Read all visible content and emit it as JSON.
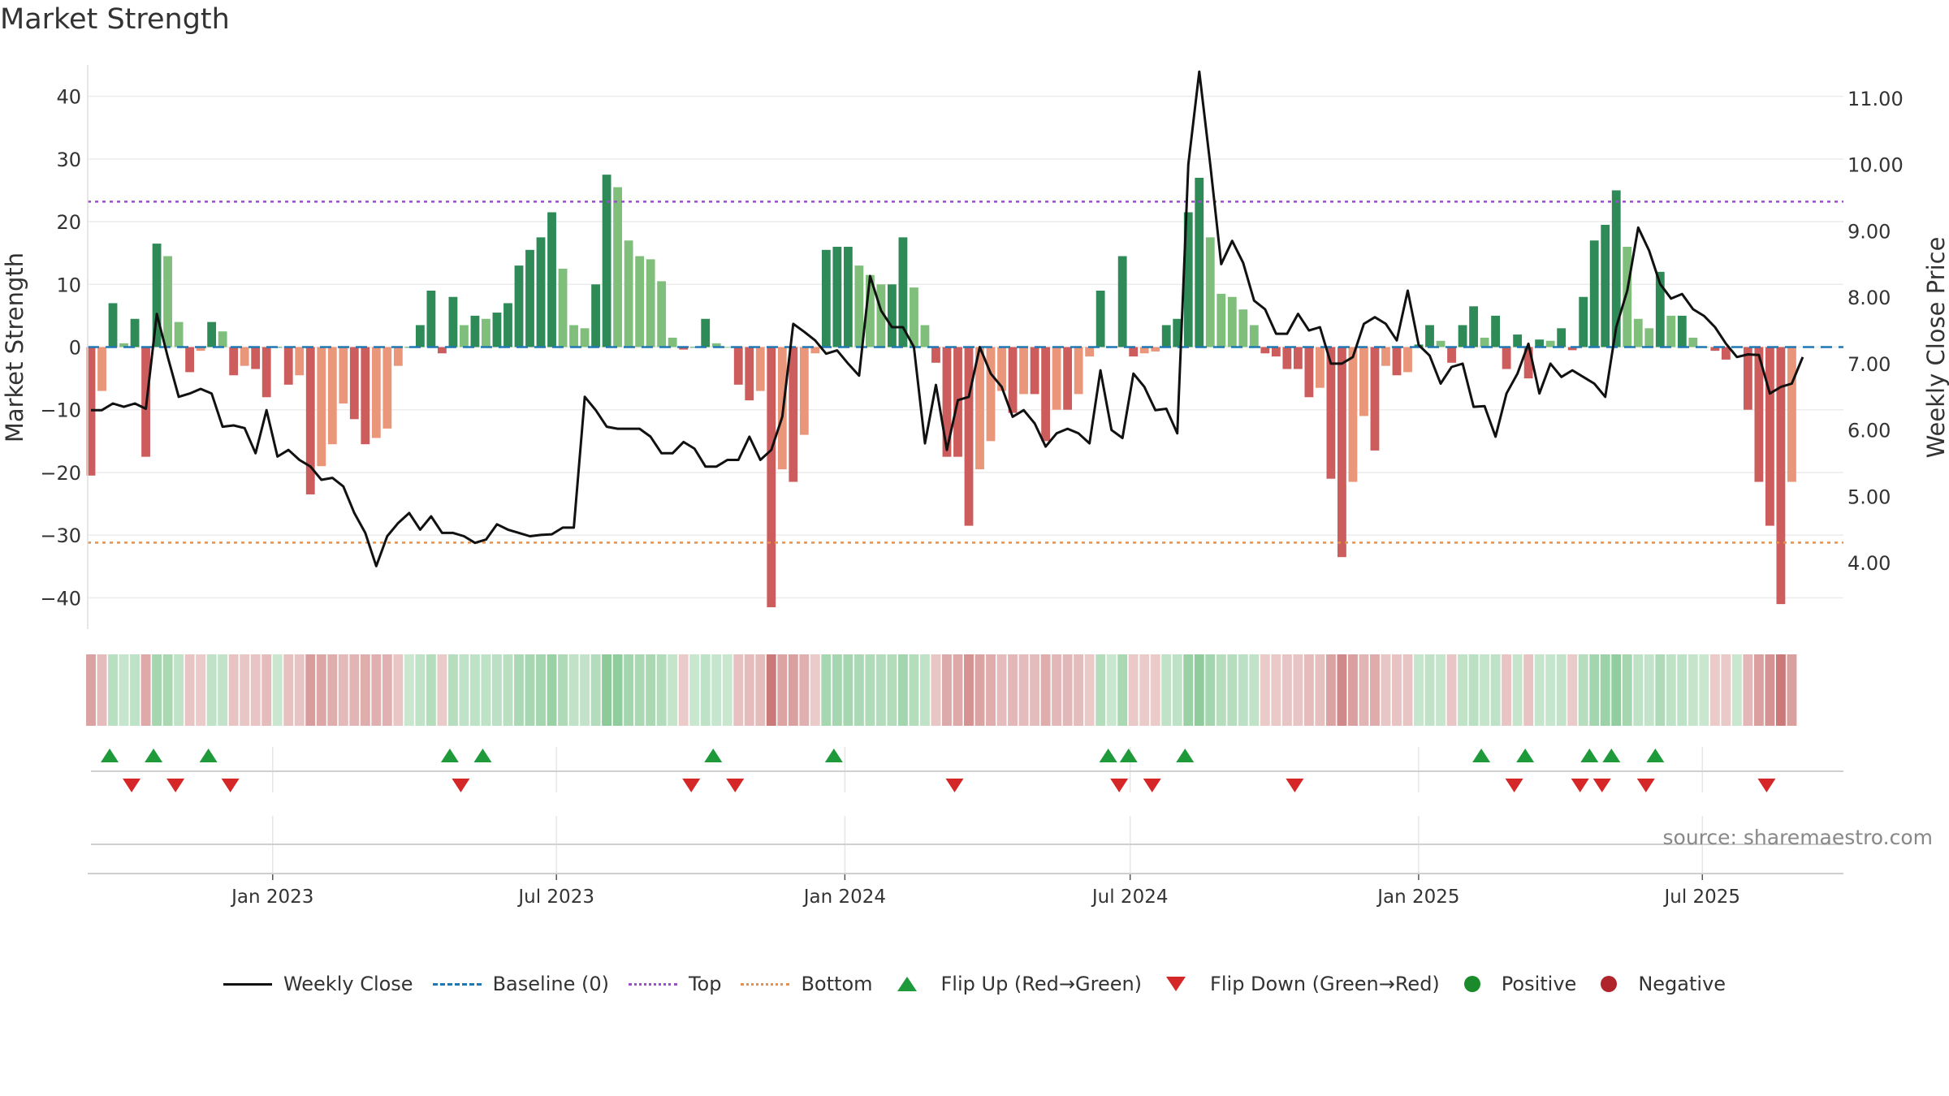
{
  "title": "Market Strength",
  "source_text": "source: sharemaestro.com",
  "legend": {
    "close": "Weekly Close",
    "baseline": "Baseline (0)",
    "top": "Top",
    "bottom": "Bottom",
    "flip_up": "Flip Up (Red→Green)",
    "flip_down": "Flip Down (Green→Red)",
    "positive": "Positive",
    "negative": "Negative"
  },
  "colors": {
    "pos_strong": "#2e8b57",
    "pos_light": "#7fbf7b",
    "neg_strong": "#cd5c5c",
    "neg_light": "#e9967a",
    "close_line": "#111111",
    "baseline": "#1f77b4",
    "top": "#9b4ccf",
    "bottom": "#e8904a",
    "flip_up": "#1e9a3b",
    "flip_down": "#d62728"
  },
  "chart_data": {
    "type": "bar",
    "ylabel": "Market Strength",
    "y2label": "Weekly Close Price",
    "ylim": [
      -45,
      45
    ],
    "y2lim": [
      3.0,
      11.5
    ],
    "yticks": [
      -40,
      -30,
      -20,
      -10,
      0,
      10,
      20,
      30,
      40
    ],
    "y2ticks": [
      "4.00",
      "5.00",
      "6.00",
      "7.00",
      "8.00",
      "9.00",
      "10.00",
      "11.00"
    ],
    "x_start": "2022-09-05",
    "x_end": "2025-09-29",
    "xticks": [
      {
        "date": "2023-01-01",
        "label": "Jan 2023"
      },
      {
        "date": "2023-07-01",
        "label": "Jul 2023"
      },
      {
        "date": "2024-01-01",
        "label": "Jan 2024"
      },
      {
        "date": "2024-07-01",
        "label": "Jul 2024"
      },
      {
        "date": "2025-01-01",
        "label": "Jan 2025"
      },
      {
        "date": "2025-07-01",
        "label": "Jul 2025"
      }
    ],
    "top_level": 23.2,
    "bottom_level": -31.2,
    "baseline": 0,
    "grid": true,
    "legend_position": "bottom",
    "first_week": "2022-09-05",
    "strength": [
      -20.5,
      -7,
      7,
      0.6,
      4.5,
      -17.5,
      16.5,
      14.5,
      4,
      -4,
      -0.6,
      4,
      2.5,
      -4.5,
      -3,
      -3.5,
      -8,
      0,
      -6,
      -4.5,
      -23.5,
      -19,
      -15.5,
      -9,
      -11.5,
      -15.5,
      -14.5,
      -13,
      -3,
      0,
      3.5,
      9,
      -1,
      8,
      3.5,
      5,
      4.5,
      5.5,
      7,
      13,
      15.5,
      17.5,
      21.5,
      12.5,
      3.5,
      3,
      10,
      27.5,
      25.5,
      17,
      14.5,
      14,
      10.5,
      1.5,
      -0.4,
      0,
      4.5,
      0.6,
      0,
      -6,
      -8.5,
      -7,
      -41.5,
      -19.5,
      -21.5,
      -14,
      -1,
      15.5,
      16,
      16,
      13,
      11.5,
      10,
      10,
      17.5,
      9.5,
      3.5,
      -2.5,
      -17.5,
      -17.5,
      -28.5,
      -19.5,
      -15,
      -7,
      -10.5,
      -7.5,
      -7.5,
      -15,
      -10,
      -10,
      -7.5,
      -1.5,
      9,
      0,
      14.5,
      -1.5,
      -1,
      -0.7,
      3.5,
      4.5,
      21.5,
      27,
      17.5,
      8.5,
      8,
      6,
      3.5,
      -1,
      -1.5,
      -3.5,
      -3.5,
      -8,
      -6.5,
      -21,
      -33.5,
      -21.5,
      -11,
      -16.5,
      -3,
      -4.5,
      -4,
      0.4,
      3.5,
      1,
      -2.5,
      3.5,
      6.5,
      1.5,
      5,
      -3.5,
      2,
      -5,
      1.2,
      1,
      3,
      -0.5,
      8,
      17,
      19.5,
      25,
      16,
      4.5,
      3,
      12,
      5,
      5,
      1.5,
      0,
      -0.6,
      -2,
      0,
      -10,
      -21.5,
      -28.5,
      -41,
      -21.5
    ],
    "close": [
      6.3,
      6.3,
      6.4,
      6.35,
      6.4,
      6.32,
      7.75,
      7.1,
      6.5,
      6.55,
      6.62,
      6.55,
      6.05,
      6.07,
      6.03,
      5.65,
      6.3,
      5.6,
      5.7,
      5.55,
      5.45,
      5.25,
      5.28,
      5.15,
      4.75,
      4.45,
      3.95,
      4.4,
      4.6,
      4.75,
      4.5,
      4.7,
      4.45,
      4.45,
      4.4,
      4.3,
      4.35,
      4.58,
      4.5,
      4.45,
      4.4,
      4.42,
      4.43,
      4.53,
      4.53,
      6.5,
      6.3,
      6.05,
      6.02,
      6.02,
      6.02,
      5.9,
      5.65,
      5.65,
      5.82,
      5.72,
      5.45,
      5.45,
      5.55,
      5.55,
      5.9,
      5.55,
      5.7,
      6.2,
      7.6,
      7.48,
      7.35,
      7.15,
      7.2,
      7.0,
      6.82,
      8.32,
      7.8,
      7.55,
      7.55,
      7.25,
      5.8,
      6.68,
      5.7,
      6.45,
      6.5,
      7.25,
      6.85,
      6.65,
      6.2,
      6.3,
      6.1,
      5.75,
      5.95,
      6.02,
      5.95,
      5.8,
      6.9,
      6.0,
      5.88,
      6.85,
      6.65,
      6.3,
      6.32,
      5.95,
      10.0,
      11.4,
      10.0,
      8.5,
      8.85,
      8.52,
      7.95,
      7.82,
      7.45,
      7.45,
      7.75,
      7.5,
      7.55,
      7.0,
      7.0,
      7.1,
      7.6,
      7.7,
      7.6,
      7.35,
      8.1,
      7.28,
      7.12,
      6.7,
      6.95,
      7.0,
      6.35,
      6.36,
      5.9,
      6.55,
      6.85,
      7.3,
      6.55,
      7.0,
      6.8,
      6.9,
      6.8,
      6.7,
      6.5,
      7.55,
      8.1,
      9.05,
      8.7,
      8.2,
      7.98,
      8.05,
      7.82,
      7.72,
      7.55,
      7.3,
      7.1,
      7.14,
      7.13,
      6.55,
      6.65,
      6.7,
      7.1
    ],
    "flip_up_dates": [
      "2022-09-19",
      "2022-10-17",
      "2022-11-21",
      "2023-04-24",
      "2023-05-15",
      "2023-10-09",
      "2023-12-25",
      "2024-06-17",
      "2024-06-30",
      "2024-08-05",
      "2025-02-10",
      "2025-03-10",
      "2025-04-20",
      "2025-05-04",
      "2025-06-01"
    ],
    "flip_down_dates": [
      "2022-10-03",
      "2022-10-31",
      "2022-12-05",
      "2023-05-01",
      "2023-09-25",
      "2023-10-23",
      "2024-03-11",
      "2024-06-24",
      "2024-07-15",
      "2024-10-14",
      "2025-03-03",
      "2025-04-14",
      "2025-04-28",
      "2025-05-26",
      "2025-08-11"
    ]
  }
}
